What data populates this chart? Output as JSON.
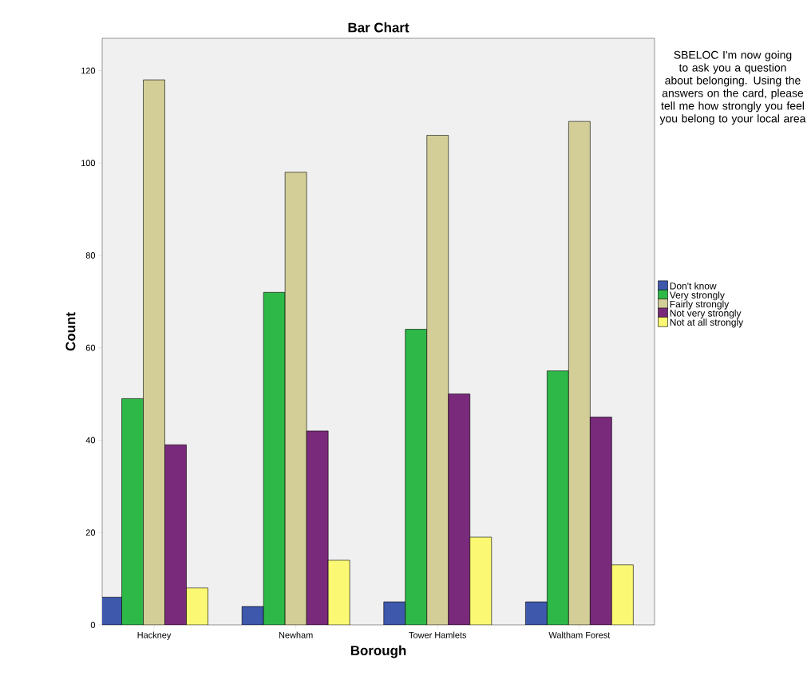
{
  "chart_data": {
    "type": "bar",
    "title": "Bar Chart",
    "xlabel": "Borough",
    "ylabel": "Count",
    "legend_title": "SBELOC I'm now going to ask you a question about belonging. Using the answers on the card, please tell me how strongly you feel you belong to your local area",
    "categories": [
      "Hackney",
      "Newham",
      "Tower Hamlets",
      "Waltham Forest"
    ],
    "series": [
      {
        "name": "Don't know",
        "color": "#3e58ac",
        "values": [
          6,
          4,
          5,
          5
        ]
      },
      {
        "name": "Very strongly",
        "color": "#2eb848",
        "values": [
          49,
          72,
          64,
          55
        ]
      },
      {
        "name": "Fairly strongly",
        "color": "#d3ce97",
        "values": [
          118,
          98,
          106,
          109
        ]
      },
      {
        "name": "Not very strongly",
        "color": "#7a2a7b",
        "values": [
          39,
          42,
          50,
          45
        ]
      },
      {
        "name": "Not at all strongly",
        "color": "#fbf873",
        "values": [
          8,
          14,
          19,
          13
        ]
      }
    ],
    "ylim": [
      0,
      127
    ],
    "yticks": [
      0,
      20,
      40,
      60,
      80,
      100,
      120
    ],
    "legend": "right"
  }
}
